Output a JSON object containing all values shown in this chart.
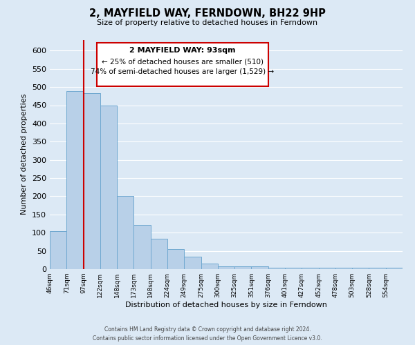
{
  "title": "2, MAYFIELD WAY, FERNDOWN, BH22 9HP",
  "subtitle": "Size of property relative to detached houses in Ferndown",
  "xlabel": "Distribution of detached houses by size in Ferndown",
  "ylabel": "Number of detached properties",
  "bin_labels": [
    "46sqm",
    "71sqm",
    "97sqm",
    "122sqm",
    "148sqm",
    "173sqm",
    "198sqm",
    "224sqm",
    "249sqm",
    "275sqm",
    "300sqm",
    "325sqm",
    "351sqm",
    "376sqm",
    "401sqm",
    "427sqm",
    "452sqm",
    "478sqm",
    "503sqm",
    "528sqm",
    "554sqm"
  ],
  "bar_heights": [
    105,
    488,
    483,
    450,
    200,
    122,
    83,
    55,
    35,
    15,
    8,
    8,
    8,
    3,
    3,
    3,
    3,
    3,
    3,
    3,
    3
  ],
  "bar_color": "#b8d0e8",
  "bar_edge_color": "#6fa8d0",
  "vline_x": 2,
  "vline_color": "#cc0000",
  "ylim": [
    0,
    630
  ],
  "yticks": [
    0,
    50,
    100,
    150,
    200,
    250,
    300,
    350,
    400,
    450,
    500,
    550,
    600
  ],
  "annotation_title": "2 MAYFIELD WAY: 93sqm",
  "annotation_line1": "← 25% of detached houses are smaller (510)",
  "annotation_line2": "74% of semi-detached houses are larger (1,529) →",
  "annotation_box_color": "#ffffff",
  "annotation_box_edge": "#cc0000",
  "background_color": "#dce9f5",
  "grid_color": "#ffffff",
  "footer_line1": "Contains HM Land Registry data © Crown copyright and database right 2024.",
  "footer_line2": "Contains public sector information licensed under the Open Government Licence v3.0."
}
